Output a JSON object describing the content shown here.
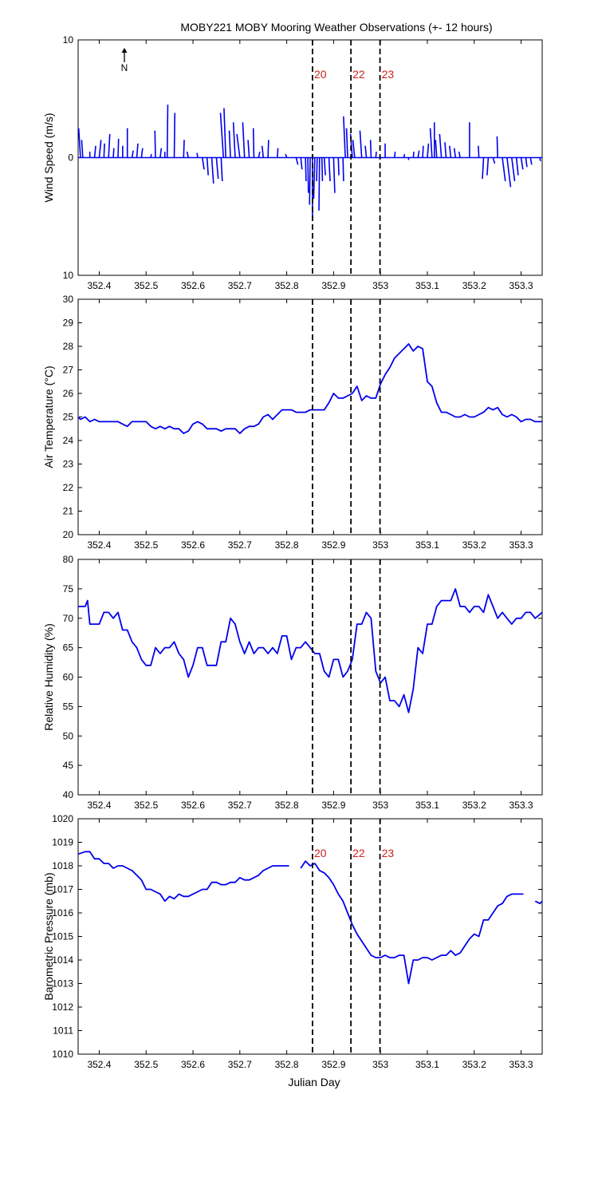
{
  "title": "MOBY221 MOBY Mooring Weather Observations (+- 12 hours)",
  "xlabel": "Julian Day",
  "colors": {
    "series": "#0000ee",
    "marker_text": "#cc2222",
    "axis": "#000000"
  },
  "x_ticks": [
    352.4,
    352.5,
    352.6,
    352.7,
    352.8,
    352.9,
    353,
    353.1,
    353.2,
    353.3
  ],
  "x_tick_labels": [
    "352.4",
    "352.5",
    "352.6",
    "352.7",
    "352.8",
    "352.9",
    "353",
    "353.1",
    "353.2",
    "353.3"
  ],
  "xlim": [
    352.355,
    353.345
  ],
  "markers": [
    {
      "x": 352.855,
      "label": "20"
    },
    {
      "x": 352.937,
      "label": "22"
    },
    {
      "x": 352.999,
      "label": "23"
    }
  ],
  "north_label": "N",
  "chart_data": [
    {
      "type": "vector",
      "ylabel": "Wind Speed (m/s)",
      "ylim": [
        -10,
        10
      ],
      "y_tick_labels": [
        "10",
        "0",
        "10"
      ],
      "show_marker_labels": true,
      "vectors": [
        [
          352.36,
          -0.3,
          2.5
        ],
        [
          352.365,
          -0.2,
          1.5
        ],
        [
          352.38,
          0.0,
          0.5
        ],
        [
          352.39,
          0.2,
          1.0
        ],
        [
          352.4,
          0.3,
          1.5
        ],
        [
          352.41,
          0.1,
          1.2
        ],
        [
          352.42,
          0.2,
          2.0
        ],
        [
          352.43,
          0.1,
          0.8
        ],
        [
          352.44,
          0.1,
          1.6
        ],
        [
          352.45,
          0.0,
          1.0
        ],
        [
          352.46,
          0.0,
          2.5
        ],
        [
          352.47,
          0.2,
          0.6
        ],
        [
          352.48,
          0.2,
          1.2
        ],
        [
          352.49,
          0.2,
          0.8
        ],
        [
          352.51,
          0.1,
          0.3
        ],
        [
          352.52,
          -0.1,
          2.3
        ],
        [
          352.53,
          0.2,
          0.8
        ],
        [
          352.54,
          0.0,
          0.5
        ],
        [
          352.545,
          0.1,
          4.5
        ],
        [
          352.56,
          0.1,
          3.8
        ],
        [
          352.58,
          0.1,
          1.5
        ],
        [
          352.59,
          -0.2,
          0.5
        ],
        [
          352.61,
          -0.1,
          0.4
        ],
        [
          352.62,
          0.3,
          -1.0
        ],
        [
          352.63,
          0.2,
          -1.5
        ],
        [
          352.64,
          0.3,
          -2.2
        ],
        [
          352.65,
          0.3,
          -1.8
        ],
        [
          352.66,
          0.2,
          -2.0
        ],
        [
          352.665,
          -0.5,
          3.8
        ],
        [
          352.67,
          -0.3,
          4.2
        ],
        [
          352.68,
          -0.2,
          2.3
        ],
        [
          352.69,
          -0.3,
          3.0
        ],
        [
          352.7,
          -0.5,
          2.0
        ],
        [
          352.71,
          -0.3,
          3.0
        ],
        [
          352.72,
          -0.2,
          1.5
        ],
        [
          352.73,
          -0.1,
          2.5
        ],
        [
          352.74,
          0.2,
          0.5
        ],
        [
          352.75,
          -0.2,
          1.0
        ],
        [
          352.76,
          0.1,
          1.5
        ],
        [
          352.78,
          0.1,
          0.8
        ],
        [
          352.8,
          -0.2,
          0.3
        ],
        [
          352.82,
          0.3,
          -0.6
        ],
        [
          352.83,
          0.2,
          -1.0
        ],
        [
          352.84,
          0.1,
          -2.0
        ],
        [
          352.845,
          0.1,
          -3.0
        ],
        [
          352.85,
          -0.1,
          -4.0
        ],
        [
          352.855,
          0.0,
          -5.3
        ],
        [
          352.86,
          -0.2,
          -3.5
        ],
        [
          352.865,
          -0.1,
          -2.0
        ],
        [
          352.87,
          -0.1,
          -4.5
        ],
        [
          352.875,
          0.1,
          -2.0
        ],
        [
          352.88,
          0.2,
          -1.5
        ],
        [
          352.89,
          0.2,
          -2.0
        ],
        [
          352.9,
          0.2,
          -3.0
        ],
        [
          352.91,
          0.1,
          -1.5
        ],
        [
          352.92,
          0.1,
          -2.0
        ],
        [
          352.925,
          -0.3,
          3.5
        ],
        [
          352.93,
          -0.2,
          2.5
        ],
        [
          352.94,
          -0.3,
          2.0
        ],
        [
          352.945,
          -0.3,
          1.5
        ],
        [
          352.96,
          -0.3,
          2.3
        ],
        [
          352.97,
          -0.2,
          1.0
        ],
        [
          352.98,
          -0.1,
          1.5
        ],
        [
          352.99,
          0.1,
          0.5
        ],
        [
          353.01,
          0.0,
          1.2
        ],
        [
          353.03,
          0.1,
          0.5
        ],
        [
          353.05,
          0.1,
          0.3
        ],
        [
          353.06,
          0.0,
          -0.2
        ],
        [
          353.07,
          0.1,
          0.5
        ],
        [
          353.08,
          0.2,
          0.6
        ],
        [
          353.09,
          0.1,
          1.0
        ],
        [
          353.1,
          0.2,
          1.2
        ],
        [
          353.11,
          -0.3,
          2.5
        ],
        [
          353.115,
          0.0,
          3.0
        ],
        [
          353.12,
          -0.2,
          1.5
        ],
        [
          353.13,
          -0.3,
          2.0
        ],
        [
          353.14,
          -0.2,
          1.3
        ],
        [
          353.15,
          -0.2,
          1.0
        ],
        [
          353.16,
          -0.2,
          0.8
        ],
        [
          353.17,
          -0.2,
          0.5
        ],
        [
          353.19,
          0.0,
          3.0
        ],
        [
          353.21,
          -0.1,
          1.0
        ],
        [
          353.22,
          -0.2,
          -1.8
        ],
        [
          353.23,
          -0.2,
          -1.5
        ],
        [
          353.24,
          0.3,
          -0.5
        ],
        [
          353.25,
          -0.1,
          1.8
        ],
        [
          353.26,
          0.5,
          -2.0
        ],
        [
          353.27,
          0.6,
          -2.5
        ],
        [
          353.28,
          0.5,
          -2.0
        ],
        [
          353.29,
          0.3,
          -1.5
        ],
        [
          353.3,
          0.3,
          -1.0
        ],
        [
          353.31,
          0.2,
          -0.8
        ],
        [
          353.32,
          0.2,
          -0.6
        ],
        [
          353.34,
          0.1,
          -0.3
        ]
      ]
    },
    {
      "type": "line",
      "ylabel": "Air Temperature (°C)",
      "ylim": [
        20,
        30
      ],
      "y_ticks": [
        20,
        21,
        22,
        23,
        24,
        25,
        26,
        27,
        28,
        29,
        30
      ],
      "y_tick_labels": [
        "20",
        "21",
        "22",
        "23",
        "24",
        "25",
        "26",
        "27",
        "28",
        "29",
        "30"
      ],
      "show_marker_labels": false,
      "x": [
        352.355,
        352.36,
        352.37,
        352.38,
        352.39,
        352.4,
        352.42,
        352.44,
        352.45,
        352.46,
        352.47,
        352.48,
        352.49,
        352.5,
        352.51,
        352.52,
        352.53,
        352.54,
        352.55,
        352.56,
        352.57,
        352.58,
        352.59,
        352.6,
        352.61,
        352.62,
        352.63,
        352.64,
        352.65,
        352.66,
        352.67,
        352.68,
        352.69,
        352.7,
        352.71,
        352.72,
        352.73,
        352.74,
        352.75,
        352.76,
        352.77,
        352.78,
        352.79,
        352.8,
        352.81,
        352.82,
        352.83,
        352.84,
        352.85,
        352.86,
        352.87,
        352.88,
        352.89,
        352.9,
        352.91,
        352.92,
        352.93,
        352.94,
        352.95,
        352.96,
        352.97,
        352.98,
        352.99,
        353.0,
        353.01,
        353.02,
        353.03,
        353.04,
        353.05,
        353.06,
        353.07,
        353.08,
        353.09,
        353.1,
        353.11,
        353.12,
        353.13,
        353.14,
        353.15,
        353.16,
        353.17,
        353.18,
        353.19,
        353.2,
        353.21,
        353.22,
        353.23,
        353.24,
        353.25,
        353.26,
        353.27,
        353.28,
        353.29,
        353.3,
        353.31,
        353.32,
        353.33,
        353.345
      ],
      "values": [
        25.0,
        24.9,
        25.0,
        24.8,
        24.9,
        24.8,
        24.8,
        24.8,
        24.7,
        24.6,
        24.8,
        24.8,
        24.8,
        24.8,
        24.6,
        24.5,
        24.6,
        24.5,
        24.6,
        24.5,
        24.5,
        24.3,
        24.4,
        24.7,
        24.8,
        24.7,
        24.5,
        24.5,
        24.5,
        24.4,
        24.5,
        24.5,
        24.5,
        24.3,
        24.5,
        24.6,
        24.6,
        24.7,
        25.0,
        25.1,
        24.9,
        25.1,
        25.3,
        25.3,
        25.3,
        25.2,
        25.2,
        25.2,
        25.3,
        25.3,
        25.3,
        25.3,
        25.6,
        26.0,
        25.8,
        25.8,
        25.9,
        26.0,
        26.3,
        25.7,
        25.9,
        25.8,
        25.8,
        26.4,
        26.8,
        27.1,
        27.5,
        27.7,
        27.9,
        28.1,
        27.8,
        28.0,
        27.9,
        26.5,
        26.3,
        25.6,
        25.2,
        25.2,
        25.1,
        25.0,
        25.0,
        25.1,
        25.0,
        25.0,
        25.1,
        25.2,
        25.4,
        25.3,
        25.4,
        25.1,
        25.0,
        25.1,
        25.0,
        24.8,
        24.9,
        24.9,
        24.8,
        24.8
      ]
    },
    {
      "type": "line",
      "ylabel": "Relative Humidity (%)",
      "ylim": [
        40,
        80
      ],
      "y_ticks": [
        40,
        45,
        50,
        55,
        60,
        65,
        70,
        75,
        80
      ],
      "y_tick_labels": [
        "40",
        "45",
        "50",
        "55",
        "60",
        "65",
        "70",
        "75",
        "80"
      ],
      "show_marker_labels": false,
      "x": [
        352.355,
        352.37,
        352.375,
        352.38,
        352.39,
        352.4,
        352.41,
        352.42,
        352.43,
        352.44,
        352.45,
        352.46,
        352.47,
        352.48,
        352.49,
        352.5,
        352.51,
        352.52,
        352.53,
        352.54,
        352.55,
        352.56,
        352.57,
        352.58,
        352.59,
        352.6,
        352.61,
        352.62,
        352.63,
        352.64,
        352.65,
        352.66,
        352.67,
        352.68,
        352.69,
        352.7,
        352.71,
        352.72,
        352.73,
        352.74,
        352.75,
        352.76,
        352.77,
        352.78,
        352.79,
        352.8,
        352.81,
        352.82,
        352.83,
        352.84,
        352.85,
        352.86,
        352.87,
        352.88,
        352.89,
        352.9,
        352.91,
        352.92,
        352.93,
        352.94,
        352.95,
        352.96,
        352.97,
        352.98,
        352.99,
        353.0,
        353.01,
        353.02,
        353.03,
        353.04,
        353.05,
        353.06,
        353.07,
        353.08,
        353.09,
        353.1,
        353.11,
        353.12,
        353.13,
        353.14,
        353.15,
        353.16,
        353.17,
        353.18,
        353.19,
        353.2,
        353.21,
        353.22,
        353.23,
        353.24,
        353.25,
        353.26,
        353.27,
        353.28,
        353.29,
        353.3,
        353.31,
        353.32,
        353.33,
        353.345
      ],
      "values": [
        72,
        72,
        73,
        69,
        69,
        69,
        71,
        71,
        70,
        71,
        68,
        68,
        66,
        65,
        63,
        62,
        62,
        65,
        64,
        65,
        65,
        66,
        64,
        63,
        60,
        62,
        65,
        65,
        62,
        62,
        62,
        66,
        66,
        70,
        69,
        66,
        64,
        66,
        64,
        65,
        65,
        64,
        65,
        64,
        67,
        67,
        63,
        65,
        65,
        66,
        65,
        64,
        64,
        61,
        60,
        63,
        63,
        60,
        61,
        63,
        69,
        69,
        71,
        70,
        61,
        59,
        60,
        56,
        56,
        55,
        57,
        54,
        58,
        65,
        64,
        69,
        69,
        72,
        73,
        73,
        73,
        75,
        72,
        72,
        71,
        72,
        72,
        71,
        74,
        72,
        70,
        71,
        70,
        69,
        70,
        70,
        71,
        71,
        70,
        71
      ],
      "x_fix_note": ""
    },
    {
      "type": "line",
      "ylabel": "Barometric Pressure (mb)",
      "ylim": [
        1010,
        1020
      ],
      "y_ticks": [
        1010,
        1011,
        1012,
        1013,
        1014,
        1015,
        1016,
        1017,
        1018,
        1019,
        1020
      ],
      "y_tick_labels": [
        "1010",
        "1011",
        "1012",
        "1013",
        "1014",
        "1015",
        "1016",
        "1017",
        "1018",
        "1019",
        "1020"
      ],
      "show_marker_labels": true,
      "segments": [
        {
          "x": [
            352.355,
            352.37,
            352.38,
            352.39,
            352.4,
            352.41,
            352.42,
            352.43,
            352.44,
            352.45,
            352.46,
            352.47,
            352.48,
            352.49,
            352.5,
            352.51,
            352.52,
            352.53,
            352.54,
            352.55,
            352.56,
            352.57,
            352.58,
            352.59,
            352.6,
            352.61,
            352.62,
            352.63,
            352.64,
            352.65,
            352.66,
            352.67,
            352.68,
            352.69,
            352.7,
            352.71,
            352.72,
            352.73,
            352.74,
            352.75,
            352.76,
            352.77,
            352.78,
            352.79,
            352.8,
            352.805
          ],
          "values": [
            1018.5,
            1018.6,
            1018.6,
            1018.3,
            1018.3,
            1018.1,
            1018.1,
            1017.9,
            1018.0,
            1018.0,
            1017.9,
            1017.8,
            1017.6,
            1017.4,
            1017.0,
            1017.0,
            1016.9,
            1016.8,
            1016.5,
            1016.7,
            1016.6,
            1016.8,
            1016.7,
            1016.7,
            1016.8,
            1016.9,
            1017.0,
            1017.0,
            1017.3,
            1017.3,
            1017.2,
            1017.2,
            1017.3,
            1017.3,
            1017.5,
            1017.4,
            1017.4,
            1017.5,
            1017.6,
            1017.8,
            1017.9,
            1018.0,
            1018.0,
            1018.0,
            1018.0,
            1018.0
          ]
        },
        {
          "x": [
            352.83,
            352.84,
            352.85,
            352.86,
            352.87,
            352.88,
            352.89,
            352.9,
            352.91,
            352.92,
            352.93,
            352.94,
            352.95,
            352.96,
            352.97,
            352.98,
            352.99,
            353.0,
            353.01,
            353.02,
            353.03,
            353.04,
            353.05,
            353.06,
            353.065,
            353.07,
            353.08,
            353.09,
            353.1,
            353.11,
            353.12,
            353.13,
            353.14,
            353.15,
            353.16,
            353.17,
            353.18,
            353.19,
            353.2,
            353.21,
            353.22,
            353.23,
            353.24,
            353.25,
            353.26,
            353.27,
            353.28,
            353.29,
            353.3,
            353.305
          ],
          "values": [
            1017.9,
            1018.2,
            1018.0,
            1018.1,
            1017.8,
            1017.7,
            1017.5,
            1017.2,
            1016.8,
            1016.5,
            1016.0,
            1015.5,
            1015.1,
            1014.8,
            1014.5,
            1014.2,
            1014.1,
            1014.1,
            1014.2,
            1014.1,
            1014.1,
            1014.2,
            1014.2,
            1013.0,
            1013.5,
            1014.0,
            1014.0,
            1014.1,
            1014.1,
            1014.0,
            1014.1,
            1014.2,
            1014.2,
            1014.4,
            1014.2,
            1014.3,
            1014.6,
            1014.9,
            1015.1,
            1015.0,
            1015.7,
            1015.7,
            1016.0,
            1016.3,
            1016.4,
            1016.7,
            1016.8,
            1016.8,
            1016.8,
            1016.8
          ]
        },
        {
          "x": [
            353.33,
            353.34,
            353.345
          ],
          "values": [
            1016.5,
            1016.4,
            1016.5
          ]
        }
      ]
    }
  ]
}
